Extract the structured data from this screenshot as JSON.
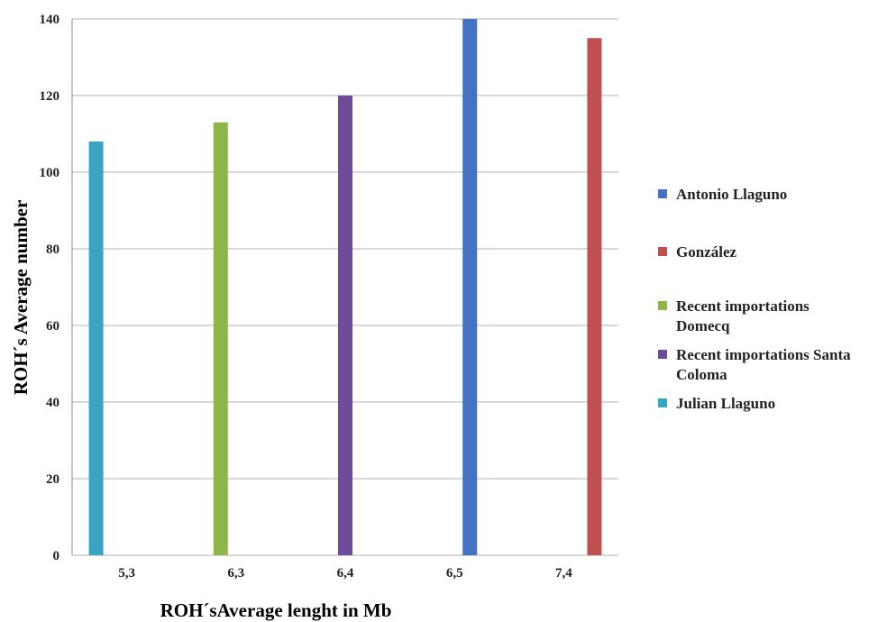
{
  "chart_data": {
    "type": "bar",
    "xlabel": "ROH´sAverage lenght in Mb",
    "ylabel": "ROH´s Average number",
    "ylim": [
      0,
      140
    ],
    "yticks": [
      0,
      20,
      40,
      60,
      80,
      100,
      120,
      140
    ],
    "grid": true,
    "legend_position": "right",
    "categories": [
      "5,3",
      "6,3",
      "6,4",
      "6,5",
      "7,4"
    ],
    "series": [
      {
        "name": "Antonio Llaguno",
        "color": "#4472C4",
        "values": [
          null,
          null,
          null,
          140,
          null
        ]
      },
      {
        "name": "González",
        "color": "#C0504D",
        "values": [
          null,
          null,
          null,
          null,
          135
        ]
      },
      {
        "name": "Recent importations Domecq",
        "color": "#8DB548",
        "values": [
          null,
          113,
          null,
          null,
          null
        ]
      },
      {
        "name": "Recent importations Santa Coloma",
        "color": "#6F4C9B",
        "values": [
          null,
          null,
          120,
          null,
          null
        ]
      },
      {
        "name": "Julian Llaguno",
        "color": "#3AA5C3",
        "values": [
          108,
          null,
          null,
          null,
          null
        ]
      }
    ]
  }
}
